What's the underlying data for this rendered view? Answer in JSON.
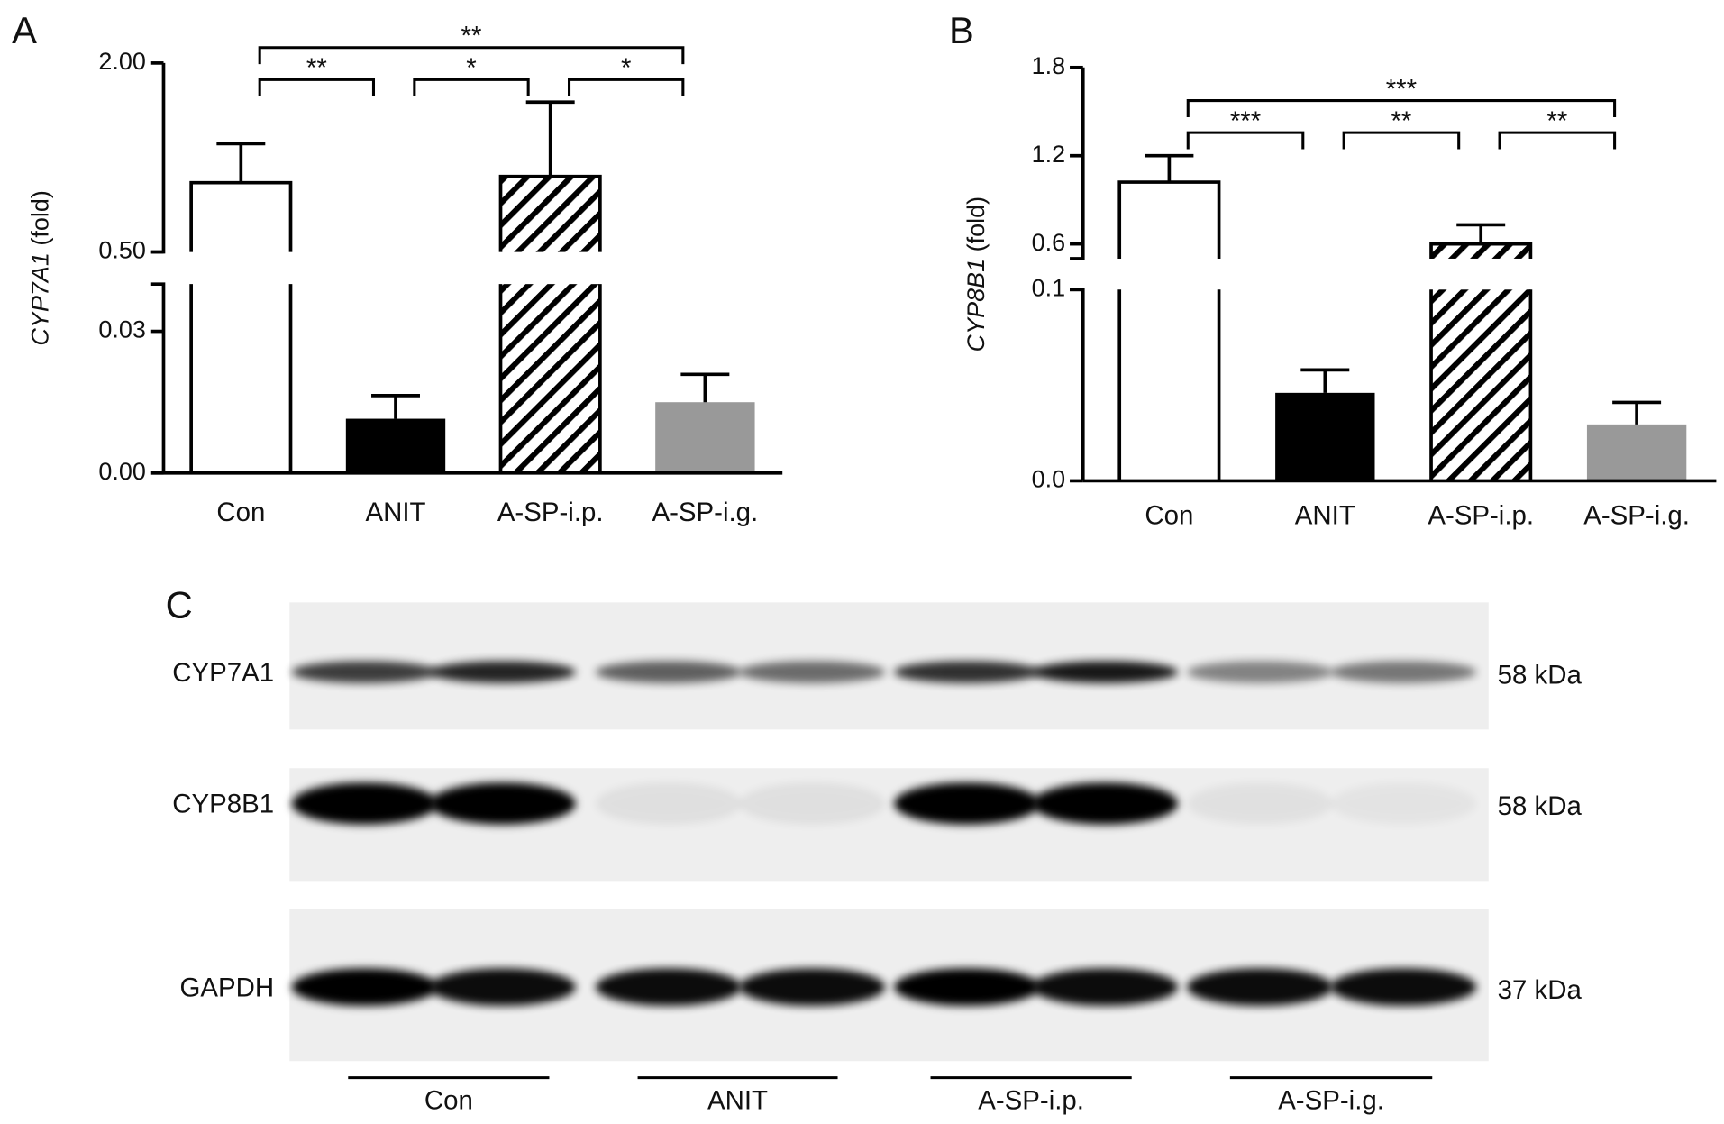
{
  "chart_data": [
    {
      "type": "bar",
      "panel": "A",
      "ylabel": {
        "gene": "CYP7A1",
        "unit": "(fold)"
      },
      "categories": [
        "Con",
        "ANIT",
        "A-SP-i.p.",
        "A-SP-i.g."
      ],
      "values": [
        1.05,
        0.0115,
        1.1,
        0.015
      ],
      "errors": [
        0.31,
        0.0049,
        0.59,
        0.0059
      ],
      "colors": [
        "#ffffff",
        "#000000",
        "#ffffff",
        "#999999"
      ],
      "hatch": [
        false,
        false,
        true,
        false
      ],
      "ylim": [
        0,
        2.0
      ],
      "ybreak": [
        0.04,
        0.5
      ],
      "yticks": [
        {
          "value": 0,
          "label": "0.00"
        },
        0.03,
        {
          "value": 0.5,
          "label": "0.50"
        },
        {
          "value": 2,
          "label": "2.00"
        }
      ],
      "significance": [
        {
          "from": "Con",
          "to": "A-SP-i.g.",
          "label": "**"
        },
        {
          "from": "Con",
          "to": "ANIT",
          "label": "**"
        },
        {
          "from": "ANIT",
          "to": "A-SP-i.p.",
          "label": "*"
        },
        {
          "from": "A-SP-i.p.",
          "to": "A-SP-i.g.",
          "label": "*"
        }
      ]
    },
    {
      "type": "bar",
      "panel": "B",
      "ylabel": {
        "gene": "CYP8B1",
        "unit": "(fold)"
      },
      "categories": [
        "Con",
        "ANIT",
        "A-SP-i.p.",
        "A-SP-i.g."
      ],
      "values": [
        1.02,
        0.046,
        0.6,
        0.0295
      ],
      "errors": [
        0.18,
        0.012,
        0.13,
        0.0115
      ],
      "colors": [
        "#ffffff",
        "#000000",
        "#ffffff",
        "#999999"
      ],
      "hatch": [
        false,
        false,
        true,
        false
      ],
      "ylim": [
        0,
        1.8
      ],
      "ybreak": [
        0.1,
        0.5
      ],
      "yticks": [
        {
          "value": 0,
          "label": "0.0"
        },
        0.1,
        0.6,
        1.2,
        1.8
      ],
      "significance": [
        {
          "from": "Con",
          "to": "A-SP-i.g.",
          "label": "***"
        },
        {
          "from": "Con",
          "to": "ANIT",
          "label": "***"
        },
        {
          "from": "ANIT",
          "to": "A-SP-i.p.",
          "label": "**"
        },
        {
          "from": "A-SP-i.p.",
          "to": "A-SP-i.g.",
          "label": "**"
        }
      ]
    }
  ],
  "blot": {
    "panel": "C",
    "rows": [
      {
        "label": "CYP7A1",
        "size": "58 kDa"
      },
      {
        "label": "CYP8B1",
        "size": "58 kDa"
      },
      {
        "label": "GAPDH",
        "size": "37 kDa"
      }
    ],
    "groups": [
      "Con",
      "ANIT",
      "A-SP-i.p.",
      "A-SP-i.g."
    ]
  }
}
